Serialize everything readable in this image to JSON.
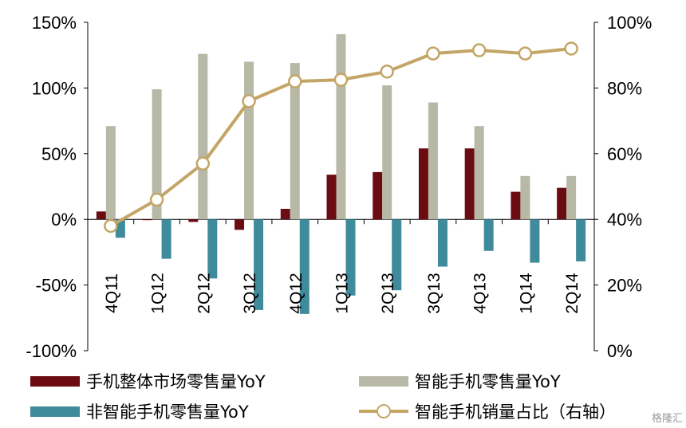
{
  "chart_data": {
    "type": "bar+line",
    "categories": [
      "4Q11",
      "1Q12",
      "2Q12",
      "3Q12",
      "4Q12",
      "1Q13",
      "2Q13",
      "3Q13",
      "4Q13",
      "1Q14",
      "2Q14"
    ],
    "left_axis": {
      "min": -100,
      "max": 150,
      "step": 50,
      "unit": "%"
    },
    "right_axis": {
      "min": 0,
      "max": 100,
      "step": 20,
      "unit": "%"
    },
    "series": [
      {
        "name": "手机整体市场零售量YoY",
        "type": "bar",
        "axis": "left",
        "color": "#6b0b12",
        "values": [
          6,
          0,
          -2,
          -8,
          8,
          34,
          36,
          54,
          54,
          21,
          24
        ]
      },
      {
        "name": "智能手机零售量YoY",
        "type": "bar",
        "axis": "left",
        "color": "#b8b8a6",
        "values": [
          71,
          99,
          126,
          120,
          119,
          141,
          102,
          89,
          71,
          33,
          33
        ]
      },
      {
        "name": "非智能手机零售量YoY",
        "type": "bar",
        "axis": "left",
        "color": "#3f8a9b",
        "values": [
          -14,
          -30,
          -45,
          -69,
          -72,
          -58,
          -54,
          -36,
          -24,
          -33,
          -32
        ]
      },
      {
        "name": "智能手机销量占比（右轴）",
        "type": "line",
        "axis": "right",
        "color": "#c3a566",
        "values": [
          38,
          46,
          57,
          76,
          82,
          82.5,
          85,
          90.5,
          91.5,
          90.5,
          92
        ]
      }
    ]
  },
  "watermark": "格隆汇"
}
